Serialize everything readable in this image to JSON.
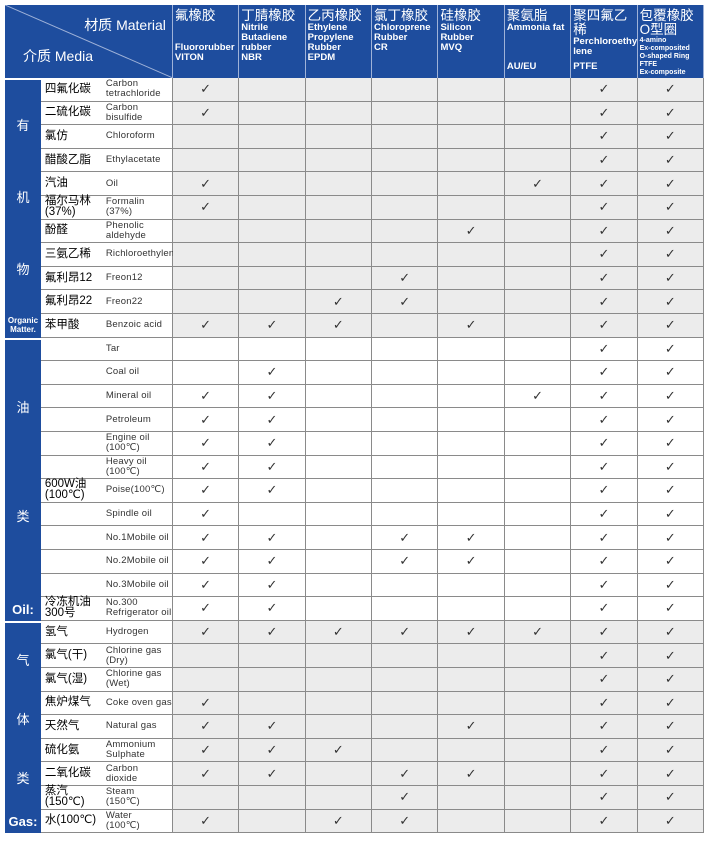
{
  "header": {
    "material": "材质 Material",
    "media": "介质 Media",
    "columns": [
      {
        "cn": "氟橡胶",
        "en": "\n\nFluororubber\nVITON",
        "code": ""
      },
      {
        "cn": "丁腈橡胶",
        "en": "Nitrile\nButadiene\nrubber\nNBR",
        "code": ""
      },
      {
        "cn": "乙丙橡胶",
        "en": "Ethylene\nPropylene\nRubber\nEPDM",
        "code": ""
      },
      {
        "cn": "氯丁橡胶",
        "en": "Chloroprene\nRubber\nCR",
        "code": ""
      },
      {
        "cn": "硅橡胶",
        "en": "Silicon\nRubber\nMVQ",
        "code": ""
      },
      {
        "cn": "聚氨脂",
        "en": "Ammonia fat",
        "code": "AU/EU"
      },
      {
        "cn": "聚四氟乙稀",
        "en": "Perchloroethy\nlene",
        "code": "PTFE"
      },
      {
        "cn": "包覆橡胶\nO型圈",
        "en": "4-amino\nEx-composited\nO-shaped Ring\nFTFE\nEx-composite",
        "code": ""
      }
    ]
  },
  "sections": [
    {
      "name": "organic",
      "gray": true,
      "labels": [
        "有",
        "机",
        "物"
      ],
      "foot": "Organic\nMatter.",
      "rows": [
        {
          "cn": "四氟化碳",
          "en": "Carbon\ntetrachloride",
          "checks": [
            1,
            0,
            0,
            0,
            0,
            0,
            1,
            1
          ]
        },
        {
          "cn": "二硫化碳",
          "en": "Carbon\nbisulfide",
          "checks": [
            1,
            0,
            0,
            0,
            0,
            0,
            1,
            1
          ]
        },
        {
          "cn": "氯仿",
          "en": "Chloroform",
          "checks": [
            0,
            0,
            0,
            0,
            0,
            0,
            1,
            1
          ]
        },
        {
          "cn": "醋酸乙脂",
          "en": "Ethylacetate",
          "checks": [
            0,
            0,
            0,
            0,
            0,
            0,
            1,
            1
          ]
        },
        {
          "cn": "汽油",
          "en": "Oil",
          "checks": [
            1,
            0,
            0,
            0,
            0,
            1,
            1,
            1
          ]
        },
        {
          "cn": "福尔马林\n(37%)",
          "en": "Formalin\n(37%)",
          "checks": [
            1,
            0,
            0,
            0,
            0,
            0,
            1,
            1
          ]
        },
        {
          "cn": "酚醛",
          "en": "Phenolic\naldehyde",
          "checks": [
            0,
            0,
            0,
            0,
            1,
            0,
            1,
            1
          ]
        },
        {
          "cn": "三氨乙稀",
          "en": "Richloroethylene",
          "checks": [
            0,
            0,
            0,
            0,
            0,
            0,
            1,
            1
          ]
        },
        {
          "cn": "氟利昂12",
          "en": "Freon12",
          "checks": [
            0,
            0,
            0,
            1,
            0,
            0,
            1,
            1
          ]
        },
        {
          "cn": "氟利昂22",
          "en": "Freon22",
          "checks": [
            0,
            0,
            1,
            1,
            0,
            0,
            1,
            1
          ]
        },
        {
          "cn": "苯甲酸",
          "en": "Benzoic acid",
          "checks": [
            1,
            1,
            1,
            0,
            1,
            0,
            1,
            1
          ]
        }
      ]
    },
    {
      "name": "oil",
      "gray": false,
      "labels": [
        "油",
        "类"
      ],
      "foot": "Oil:",
      "rows": [
        {
          "cn": "",
          "en": "Tar",
          "checks": [
            0,
            0,
            0,
            0,
            0,
            0,
            1,
            1
          ]
        },
        {
          "cn": "",
          "en": "Coal oil",
          "checks": [
            0,
            1,
            0,
            0,
            0,
            0,
            1,
            1
          ]
        },
        {
          "cn": "",
          "en": "Mineral oil",
          "checks": [
            1,
            1,
            0,
            0,
            0,
            1,
            1,
            1
          ]
        },
        {
          "cn": "",
          "en": "Petroleum",
          "checks": [
            1,
            1,
            0,
            0,
            0,
            0,
            1,
            1
          ]
        },
        {
          "cn": "",
          "en": "Engine oil\n(100℃)",
          "checks": [
            1,
            1,
            0,
            0,
            0,
            0,
            1,
            1
          ]
        },
        {
          "cn": "",
          "en": "Heavy oil\n(100℃)",
          "checks": [
            1,
            1,
            0,
            0,
            0,
            0,
            1,
            1
          ]
        },
        {
          "cn": "600W油\n(100℃)",
          "en": "Poise(100℃)",
          "checks": [
            1,
            1,
            0,
            0,
            0,
            0,
            1,
            1
          ]
        },
        {
          "cn": "",
          "en": "Spindle oil",
          "checks": [
            1,
            0,
            0,
            0,
            0,
            0,
            1,
            1
          ]
        },
        {
          "cn": "",
          "en": "No.1Mobile oil",
          "checks": [
            1,
            1,
            0,
            1,
            1,
            0,
            1,
            1
          ]
        },
        {
          "cn": "",
          "en": "No.2Mobile oil",
          "checks": [
            1,
            1,
            0,
            1,
            1,
            0,
            1,
            1
          ]
        },
        {
          "cn": "",
          "en": "No.3Mobile oil",
          "checks": [
            1,
            1,
            0,
            0,
            0,
            0,
            1,
            1
          ]
        },
        {
          "cn": "冷冻机油\n300号",
          "en": "No.300\nRefrigerator oil",
          "checks": [
            1,
            1,
            0,
            0,
            0,
            0,
            1,
            1
          ]
        }
      ]
    },
    {
      "name": "gas",
      "gray": true,
      "labels": [
        "气",
        "体",
        "类"
      ],
      "foot": "Gas:",
      "rows": [
        {
          "cn": "氢气",
          "en": "Hydrogen",
          "checks": [
            1,
            1,
            1,
            1,
            1,
            1,
            1,
            1
          ]
        },
        {
          "cn": "氯气(干)",
          "en": "Chlorine gas\n(Dry)",
          "checks": [
            0,
            0,
            0,
            0,
            0,
            0,
            1,
            1
          ]
        },
        {
          "cn": "氯气(湿)",
          "en": "Chlorine gas\n(Wet)",
          "checks": [
            0,
            0,
            0,
            0,
            0,
            0,
            1,
            1
          ]
        },
        {
          "cn": "焦炉煤气",
          "en": "Coke oven gas",
          "checks": [
            1,
            0,
            0,
            0,
            0,
            0,
            1,
            1
          ]
        },
        {
          "cn": "天然气",
          "en": "Natural gas",
          "checks": [
            1,
            1,
            0,
            0,
            1,
            0,
            1,
            1
          ]
        },
        {
          "cn": "硫化氨",
          "en": "Ammonium\nSulphate",
          "checks": [
            1,
            1,
            1,
            0,
            0,
            0,
            1,
            1
          ]
        },
        {
          "cn": "二氧化碳",
          "en": "Carbon\ndioxide",
          "checks": [
            1,
            1,
            0,
            1,
            1,
            0,
            1,
            1
          ]
        },
        {
          "cn": "蒸汽(150℃)",
          "en": "Steam\n(150℃)",
          "checks": [
            0,
            0,
            0,
            1,
            0,
            0,
            1,
            1
          ]
        },
        {
          "cn": "水(100℃)",
          "en": "Water\n(100℃)",
          "checks": [
            1,
            0,
            1,
            1,
            0,
            0,
            1,
            1
          ]
        }
      ]
    }
  ],
  "check_glyph": "✓",
  "colors": {
    "header_bg": "#1e4d9e",
    "cell_gray": "#ececec"
  }
}
